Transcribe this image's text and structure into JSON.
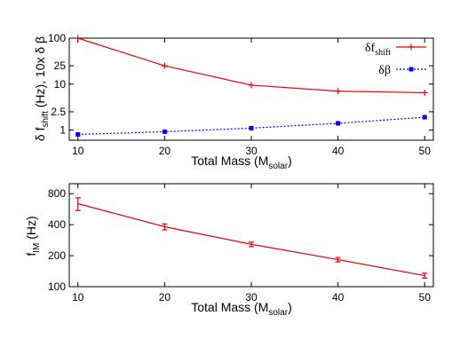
{
  "chart_data": [
    {
      "type": "line",
      "scale": {
        "y": "log"
      },
      "xlabel": "Total Mass (M",
      "xlabel_sub": "solar",
      "xlabel_end": ")",
      "ylabel_parts": [
        "δ f",
        "shift",
        " (Hz),  10x δ β"
      ],
      "x": [
        10,
        20,
        30,
        40,
        50
      ],
      "xlim": [
        9,
        51
      ],
      "ylim": [
        0.6,
        100
      ],
      "x_ticks": [
        "10",
        "20",
        "30",
        "40",
        "50"
      ],
      "y_ticks": [
        {
          "value": 100,
          "label": "100"
        },
        {
          "value": 25,
          "label": "25"
        },
        {
          "value": 10,
          "label": "10"
        },
        {
          "value": 2.5,
          "label": "2.5"
        },
        {
          "value": 1,
          "label": "1"
        }
      ],
      "legend_position": "top-right",
      "series": [
        {
          "name": "δf",
          "name_sub": "shift",
          "color": "#e8000b",
          "style": "solid",
          "marker": "plus",
          "values": [
            100,
            25,
            9.5,
            7.0,
            6.5
          ]
        },
        {
          "name": "δβ",
          "color": "#0000ff",
          "style": "dotted",
          "marker": "square",
          "values": [
            0.8,
            0.92,
            1.1,
            1.4,
            1.9
          ]
        }
      ]
    },
    {
      "type": "line",
      "scale": {
        "y": "log"
      },
      "xlabel": "Total Mass (M",
      "xlabel_sub": "solar",
      "xlabel_end": ")",
      "ylabel_parts": [
        "f",
        "IM",
        " (Hz)"
      ],
      "x": [
        10,
        20,
        30,
        40,
        50
      ],
      "xlim": [
        9,
        51
      ],
      "ylim": [
        100,
        1000
      ],
      "x_ticks": [
        "10",
        "20",
        "30",
        "40",
        "50"
      ],
      "y_ticks": [
        {
          "value": 800,
          "label": "800"
        },
        {
          "value": 400,
          "label": "400"
        },
        {
          "value": 200,
          "label": "200"
        },
        {
          "value": 100,
          "label": "100"
        }
      ],
      "series": [
        {
          "color": "#e8000b",
          "style": "solid",
          "marker": "errorbar",
          "values": [
            640,
            382,
            258,
            183,
            128
          ],
          "error": [
            90,
            25,
            13,
            9,
            7
          ]
        }
      ]
    }
  ]
}
